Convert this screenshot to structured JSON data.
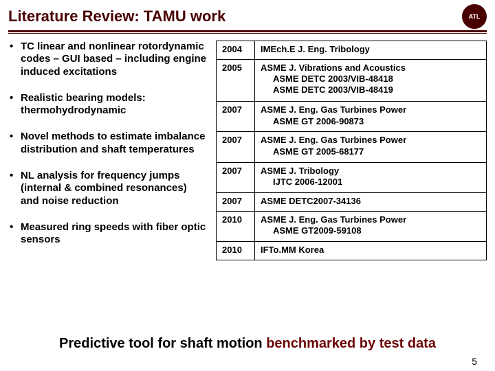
{
  "title": "Literature Review: TAMU work",
  "logo_text": "ATL",
  "bullets": [
    "TC linear and nonlinear rotordynamic codes – GUI based – including engine induced excitations",
    "Realistic bearing models: thermohydrodynamic",
    "Novel methods to estimate imbalance distribution and shaft temperatures",
    "NL analysis for frequency jumps (internal & combined resonances) and noise reduction",
    "Measured ring speeds with fiber optic sensors"
  ],
  "rows": [
    {
      "year": "2004",
      "pub": "IMEch.E J. Eng. Tribology",
      "subs": []
    },
    {
      "year": "2005",
      "pub": "ASME J. Vibrations and Acoustics",
      "subs": [
        "ASME DETC 2003/VIB-48418",
        "ASME DETC 2003/VIB-48419"
      ]
    },
    {
      "year": "2007",
      "pub": "ASME J. Eng. Gas Turbines Power",
      "subs": [
        "ASME GT 2006-90873"
      ]
    },
    {
      "year": "2007",
      "pub": "ASME J. Eng. Gas Turbines Power",
      "subs": [
        "ASME GT 2005-68177"
      ]
    },
    {
      "year": "2007",
      "pub": "ASME J. Tribology",
      "subs": [
        "IJTC 2006-12001"
      ]
    },
    {
      "year": "2007",
      "pub": "ASME DETC2007-34136",
      "subs": []
    },
    {
      "year": "2010",
      "pub": "ASME J. Eng. Gas Turbines Power",
      "subs": [
        "ASME GT2009-59108"
      ]
    },
    {
      "year": "2010",
      "pub": "IFTo.MM Korea",
      "subs": []
    }
  ],
  "footer_black": "Predictive tool for shaft motion ",
  "footer_maroon": "benchmarked by test data",
  "page_number": "5",
  "colors": {
    "maroon": "#4a0000",
    "text": "#000000",
    "background": "#ffffff"
  }
}
